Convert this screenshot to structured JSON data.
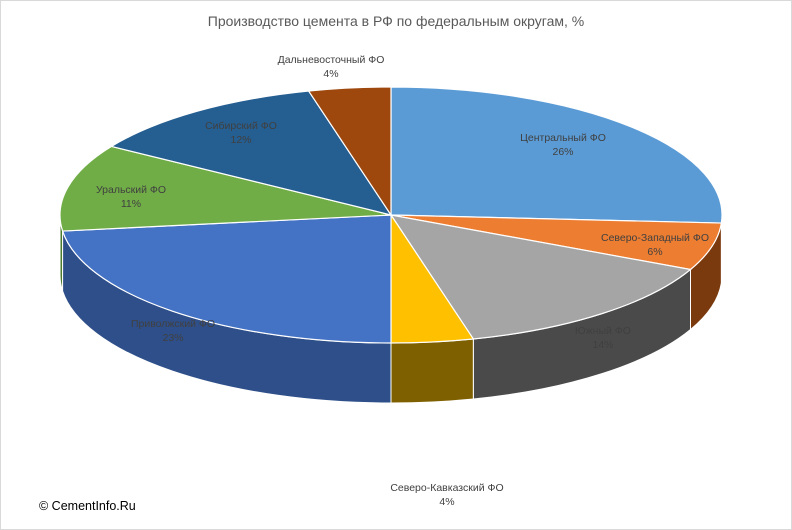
{
  "chart_data": {
    "type": "pie",
    "title": "Производство цемента в РФ по федеральным округам, %",
    "slices": [
      {
        "label": "Центральный ФО",
        "value": 26,
        "value_label": "26%",
        "color": "#5b9bd5",
        "side": "#3f73a3"
      },
      {
        "label": "Северо-Западный ФО",
        "value": 6,
        "value_label": "6%",
        "color": "#ed7d31",
        "side": "#7a3a0e"
      },
      {
        "label": "Южный ФО",
        "value": 14,
        "value_label": "14%",
        "color": "#a5a5a5",
        "side": "#4a4a4a"
      },
      {
        "label": "Северо-Кавказский ФО",
        "value": 4,
        "value_label": "4%",
        "color": "#ffc000",
        "side": "#7f6000"
      },
      {
        "label": "Приволжский ФО",
        "value": 23,
        "value_label": "23%",
        "color": "#4472c4",
        "side": "#2e4f8a"
      },
      {
        "label": "Уральский ФО",
        "value": 11,
        "value_label": "11%",
        "color": "#70ad47",
        "side": "#4a7a2c"
      },
      {
        "label": "Сибирский ФО",
        "value": 12,
        "value_label": "12%",
        "color": "#255e91",
        "side": "#173c5e"
      },
      {
        "label": "Дальневосточный ФО",
        "value": 4,
        "value_label": "4%",
        "color": "#9e480e",
        "side": "#5e2a07"
      }
    ]
  },
  "copyright": "© CementInfo.Ru"
}
